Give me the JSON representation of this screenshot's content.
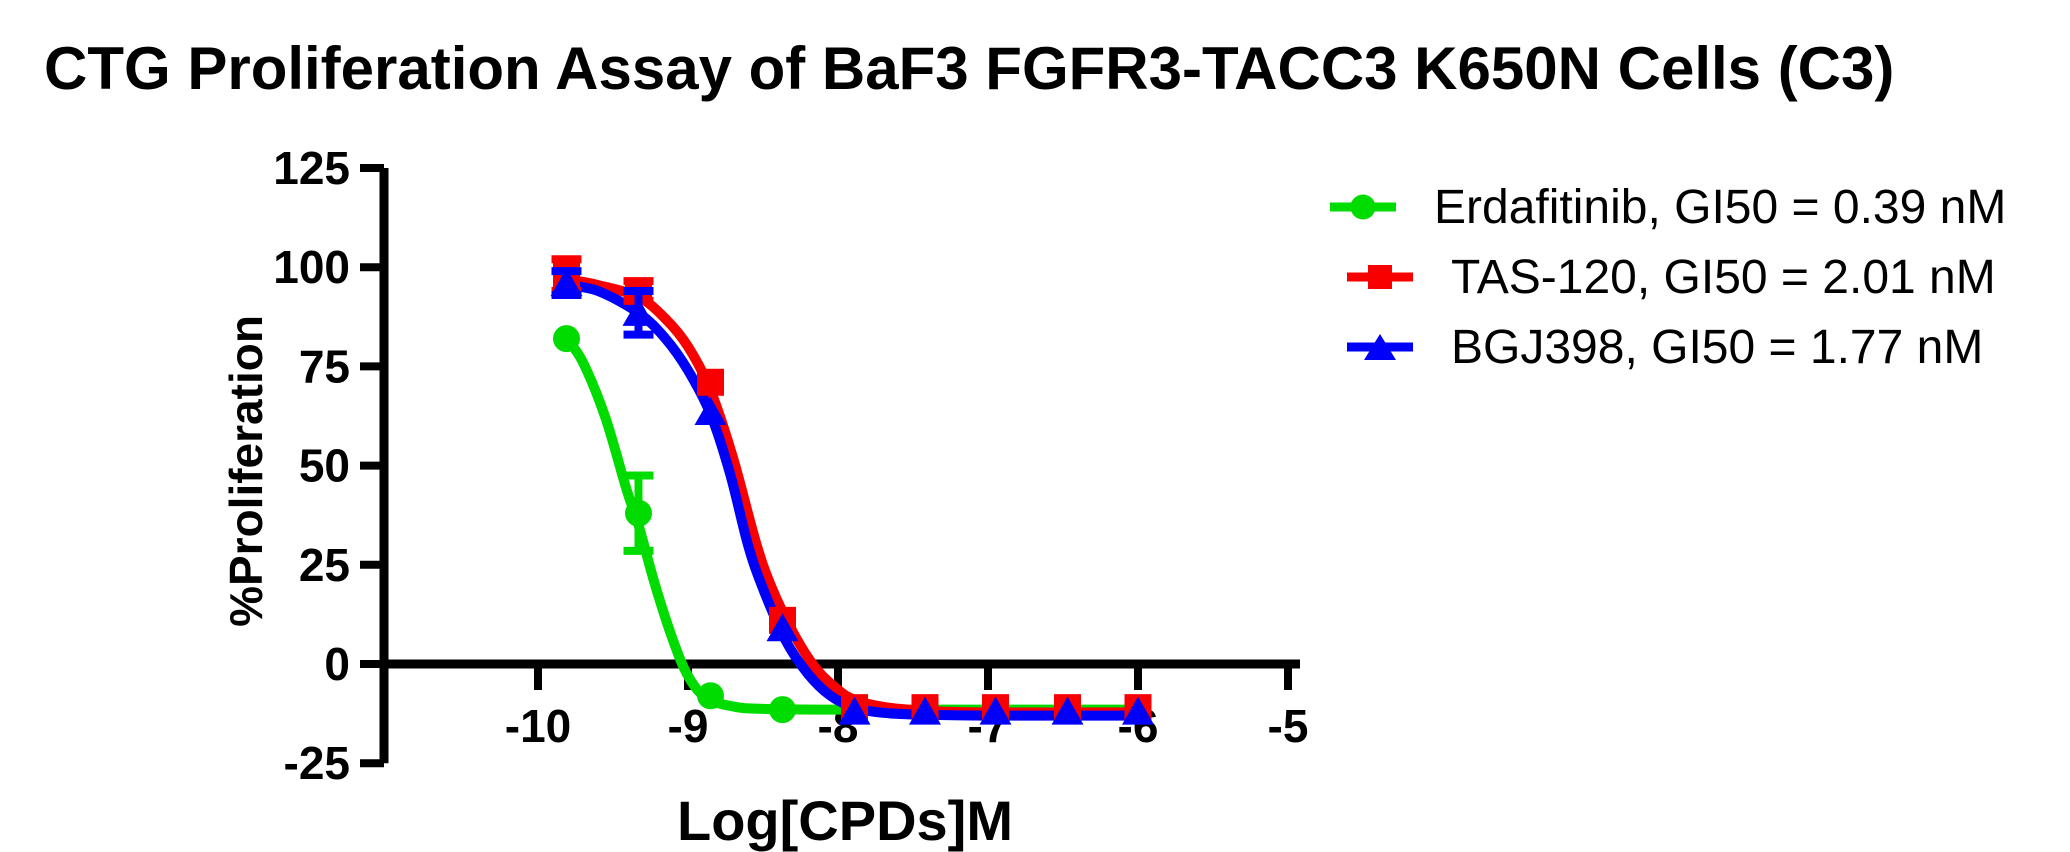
{
  "title": "CTG Proliferation Assay of BaF3 FGFR3-TACC3 K650N Cells (C3)",
  "chart_data": {
    "type": "line",
    "title": "CTG Proliferation Assay of BaF3 FGFR3-TACC3 K650N Cells (C3)",
    "xlabel": "Log[CPDs]M",
    "ylabel": "%Proliferation",
    "xlim": [
      -11.0,
      -4.9
    ],
    "ylim": [
      -25,
      125
    ],
    "grid": false,
    "legend_position": "right-outside",
    "x_tick_labels": [
      "-10",
      "-9",
      "-8",
      "-7",
      "-6",
      "-5"
    ],
    "y_tick_labels": [
      "125",
      "100",
      "75",
      "50",
      "25",
      "0",
      "-25"
    ],
    "x": [
      -9.81,
      -9.33,
      -8.85,
      -8.37,
      -7.89,
      -7.42,
      -6.95,
      -6.47,
      -6.0
    ],
    "series": [
      {
        "name": "Erdafitinib",
        "label": "Erdafitinib, GI50 = 0.39 nM",
        "gi50_nM": 0.39,
        "color": "#00DC00",
        "marker": "circle",
        "values": [
          82,
          38,
          -8,
          -11.5,
          -11.5,
          -11.5,
          -11.5,
          -11.5,
          -11.5
        ],
        "errors": [
          0,
          9.5,
          0,
          0,
          0,
          0,
          0,
          0,
          0
        ],
        "curve": [
          [
            -9.81,
            82
          ],
          [
            -9.7,
            76
          ],
          [
            -9.55,
            62
          ],
          [
            -9.41,
            44
          ],
          [
            -9.33,
            35
          ],
          [
            -9.22,
            20
          ],
          [
            -9.1,
            6
          ],
          [
            -9.0,
            -3
          ],
          [
            -8.88,
            -8.5
          ],
          [
            -8.7,
            -10.7
          ],
          [
            -8.5,
            -11.3
          ],
          [
            -8.0,
            -11.5
          ],
          [
            -7.0,
            -11.5
          ],
          [
            -6.0,
            -11.5
          ]
        ]
      },
      {
        "name": "TAS-120",
        "label": "TAS-120, GI50 = 2.01 nM",
        "gi50_nM": 2.01,
        "color": "#F80000",
        "marker": "square",
        "values": [
          98,
          94,
          71,
          11,
          -11,
          -11,
          -11,
          -11,
          -11
        ],
        "errors": [
          4,
          2.5,
          0,
          0,
          0,
          0,
          0,
          0,
          0
        ],
        "curve": [
          [
            -9.81,
            97
          ],
          [
            -9.6,
            95.5
          ],
          [
            -9.33,
            92.5
          ],
          [
            -9.15,
            87
          ],
          [
            -9.0,
            80
          ],
          [
            -8.85,
            69
          ],
          [
            -8.7,
            52
          ],
          [
            -8.55,
            31
          ],
          [
            -8.45,
            20
          ],
          [
            -8.3,
            8
          ],
          [
            -8.15,
            -1
          ],
          [
            -8.0,
            -6.5
          ],
          [
            -7.89,
            -9
          ],
          [
            -7.7,
            -10.8
          ],
          [
            -7.42,
            -11.8
          ],
          [
            -7.0,
            -12.2
          ],
          [
            -6.0,
            -12.2
          ]
        ]
      },
      {
        "name": "BGJ398",
        "label": "BGJ398, GI50 = 1.77 nM",
        "gi50_nM": 1.77,
        "color": "#0000F8",
        "marker": "triangle",
        "values": [
          96,
          88.5,
          63.5,
          9,
          -12,
          -12,
          -12,
          -12,
          -12
        ],
        "errors": [
          3,
          5.5,
          0,
          0,
          0,
          0,
          0,
          0,
          0
        ],
        "curve": [
          [
            -9.81,
            95.5
          ],
          [
            -9.6,
            94
          ],
          [
            -9.33,
            88.5
          ],
          [
            -9.15,
            82
          ],
          [
            -9.0,
            74
          ],
          [
            -8.85,
            63
          ],
          [
            -8.72,
            48
          ],
          [
            -8.6,
            30
          ],
          [
            -8.5,
            19
          ],
          [
            -8.35,
            6
          ],
          [
            -8.2,
            -2.5
          ],
          [
            -8.05,
            -8
          ],
          [
            -7.89,
            -11
          ],
          [
            -7.7,
            -12.3
          ],
          [
            -7.42,
            -12.8
          ],
          [
            -7.0,
            -13
          ],
          [
            -6.0,
            -13
          ]
        ]
      }
    ]
  }
}
